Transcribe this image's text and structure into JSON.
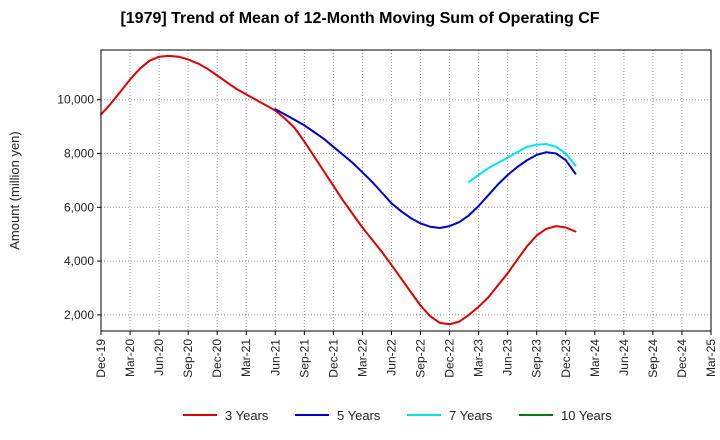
{
  "chart_data": {
    "type": "line",
    "title": "[1979]  Trend of Mean of 12-Month Moving Sum of Operating CF",
    "xlabel": "",
    "ylabel": "Amount (million yen)",
    "x_tick_labels": [
      "Dec-19",
      "Mar-20",
      "Jun-20",
      "Sep-20",
      "Dec-20",
      "Mar-21",
      "Jun-21",
      "Sep-21",
      "Dec-21",
      "Mar-22",
      "Jun-22",
      "Sep-22",
      "Dec-22",
      "Mar-23",
      "Jun-23",
      "Sep-23",
      "Dec-23",
      "Mar-24",
      "Jun-24",
      "Sep-24",
      "Dec-24",
      "Mar-25"
    ],
    "y_ticks": [
      2000,
      4000,
      6000,
      8000,
      10000
    ],
    "y_tick_labels": [
      "2,000",
      "4,000",
      "6,000",
      "8,000",
      "10,000"
    ],
    "ylim": [
      1400,
      11850
    ],
    "grid": true,
    "legend_position": "bottom",
    "series": [
      {
        "name": "3 Years",
        "color": "#e00000",
        "values": [
          9450,
          9850,
          10300,
          10750,
          11150,
          11450,
          11600,
          11630,
          11600,
          11500,
          11350,
          11150,
          10900,
          10650,
          10400,
          10200,
          10000,
          9800,
          9600,
          9300,
          8950,
          8450,
          7900,
          7350,
          6800,
          6250,
          5750,
          5250,
          4800,
          4350,
          3850,
          3350,
          2850,
          2350,
          1950,
          1700,
          1650,
          1750,
          2000,
          2300,
          2650,
          3100,
          3550,
          4050,
          4550,
          4950,
          5200,
          5300,
          5250,
          5100
        ],
        "start_index": 0
      },
      {
        "name": "5 Years",
        "color": "#0000cc",
        "values": [
          9650,
          9450,
          9250,
          9050,
          8800,
          8550,
          8250,
          7950,
          7650,
          7300,
          6950,
          6550,
          6150,
          5850,
          5600,
          5400,
          5280,
          5230,
          5300,
          5450,
          5700,
          6050,
          6450,
          6850,
          7200,
          7500,
          7750,
          7950,
          8050,
          8000,
          7750,
          7250
        ],
        "start_index": 18
      },
      {
        "name": "7 Years",
        "color": "#00e5ee",
        "values": [
          6950,
          7200,
          7450,
          7650,
          7850,
          8050,
          8250,
          8330,
          8350,
          8250,
          8000,
          7550
        ],
        "start_index": 38
      },
      {
        "name": "10 Years",
        "color": "#007f00",
        "values": [],
        "start_index": 0
      }
    ]
  }
}
